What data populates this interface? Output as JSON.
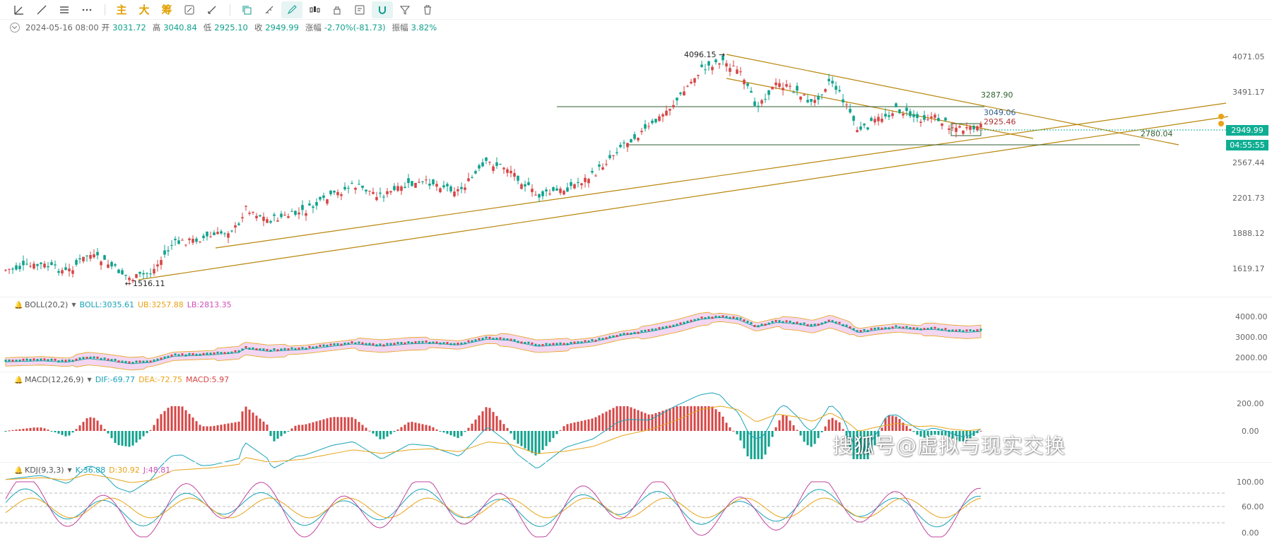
{
  "toolbar": {
    "tools": [
      {
        "name": "trendline-tool-icon",
        "glyph": "line"
      },
      {
        "name": "ray-tool-icon",
        "glyph": "ray"
      },
      {
        "name": "horizontal-lines-icon",
        "glyph": "hlines"
      },
      {
        "name": "more-tools-icon",
        "glyph": "more"
      }
    ],
    "text_buttons": [
      "主",
      "大",
      "筹"
    ]
  },
  "ohlc": {
    "date": "2024-05-16 08:00",
    "open_label": "开",
    "open": "3031.72",
    "high_label": "高",
    "high": "3040.84",
    "low_label": "低",
    "low": "2925.10",
    "close_label": "收",
    "close": "2949.99",
    "change_label": "涨幅",
    "change": "-2.70%(-81.73)",
    "amplitude_label": "振幅",
    "amplitude": "3.82%"
  },
  "price_axis": {
    "ticks": [
      "4071.05",
      "3491.17",
      "2567.44",
      "2201.73",
      "1888.12",
      "1619.17"
    ],
    "current_price": "2949.99",
    "countdown": "04:55:55"
  },
  "annotations": {
    "high": "4096.15",
    "low": "1516.11",
    "level_top": "3287.90",
    "level_mid": "3049.06",
    "level_box": "2925.46",
    "level_low": "2780.04"
  },
  "boll": {
    "label": "BOLL(20,2)",
    "boll": "BOLL:3035.61",
    "ub": "UB:3257.88",
    "lb": "LB:2813.35",
    "ticks": [
      "4000.00",
      "3000.00",
      "2000.00"
    ]
  },
  "macd": {
    "label": "MACD(12,26,9)",
    "dif": "DIF:-69.77",
    "dea": "DEA:-72.75",
    "macd": "MACD:5.97",
    "ticks": [
      "200.00",
      "0.00"
    ]
  },
  "kdj": {
    "label": "KDJ(9,3,3)",
    "k": "K:36.88",
    "d": "D:30.92",
    "j": "J:48.81",
    "ticks": [
      "100.00",
      "60.00",
      "0.00"
    ]
  },
  "watermark": "搜狐号@虚拟与现实交换",
  "colors": {
    "up": "#d64545",
    "down": "#11a18d",
    "trendline": "#b8860b",
    "level_line": "#2e5e2e",
    "price_tag": "#0fae93"
  }
}
